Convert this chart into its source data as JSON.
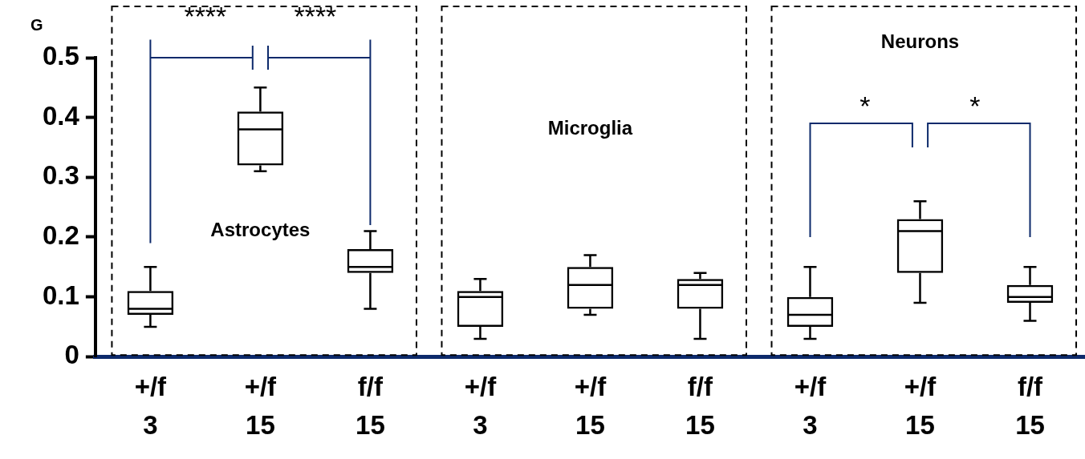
{
  "chart_data": {
    "type": "box",
    "title": "G",
    "categories": [
      "+/f\n3",
      "+/f\n15",
      "f/f\n15",
      "+/f\n3",
      "+/f\n15",
      "f/f\n15",
      "+/f\n3",
      "+/f\n15",
      "f/f\n15"
    ],
    "boxes": [
      {
        "low": 0.05,
        "q1": 0.07,
        "median": 0.08,
        "q3": 0.11,
        "high": 0.15
      },
      {
        "low": 0.31,
        "q1": 0.32,
        "median": 0.38,
        "q3": 0.41,
        "high": 0.45
      },
      {
        "low": 0.08,
        "q1": 0.14,
        "median": 0.15,
        "q3": 0.18,
        "high": 0.21
      },
      {
        "low": 0.03,
        "q1": 0.05,
        "median": 0.1,
        "q3": 0.11,
        "high": 0.13
      },
      {
        "low": 0.07,
        "q1": 0.08,
        "median": 0.12,
        "q3": 0.15,
        "high": 0.17
      },
      {
        "low": 0.03,
        "q1": 0.08,
        "median": 0.12,
        "q3": 0.13,
        "high": 0.14
      },
      {
        "low": 0.03,
        "q1": 0.05,
        "median": 0.07,
        "q3": 0.1,
        "high": 0.15
      },
      {
        "low": 0.09,
        "q1": 0.14,
        "median": 0.21,
        "q3": 0.23,
        "high": 0.26
      },
      {
        "low": 0.06,
        "q1": 0.09,
        "median": 0.1,
        "q3": 0.12,
        "high": 0.15
      }
    ],
    "color": "#000000",
    "ylim": [
      0,
      0.5
    ],
    "yticks": [
      0,
      0.1,
      0.2,
      0.3,
      0.4,
      0.5
    ],
    "grid": false,
    "legend": false,
    "annotations": [
      "Astrocytes",
      "Microglia",
      "Neurons",
      "****",
      "****",
      "*",
      "*"
    ]
  }
}
